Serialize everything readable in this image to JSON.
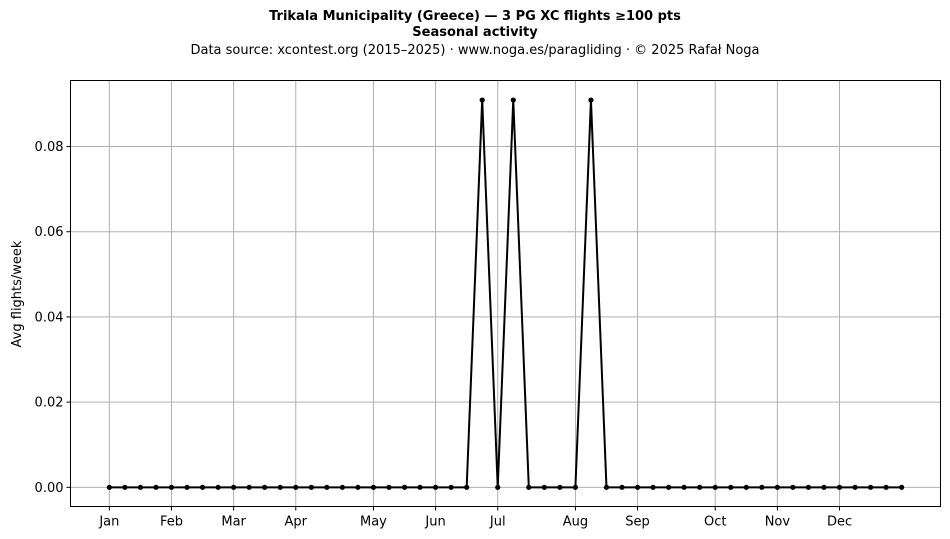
{
  "chart_data": {
    "type": "line",
    "title": "Trikala Municipality (Greece)  —  3 PG XC flights ≥100 pts",
    "subtitle": "Seasonal activity",
    "source_note": "Data source: xcontest.org (2015–2025)  ·  www.noga.es/paragliding  ·  © 2025 Rafał Noga",
    "ylabel": "Avg flights/week",
    "xlabel": "",
    "x_ticks": [
      {
        "label": "Jan",
        "week": 1
      },
      {
        "label": "Feb",
        "week": 5
      },
      {
        "label": "Mar",
        "week": 9
      },
      {
        "label": "Apr",
        "week": 13
      },
      {
        "label": "May",
        "week": 18
      },
      {
        "label": "Jun",
        "week": 22
      },
      {
        "label": "Jul",
        "week": 26
      },
      {
        "label": "Aug",
        "week": 31
      },
      {
        "label": "Sep",
        "week": 35
      },
      {
        "label": "Oct",
        "week": 40
      },
      {
        "label": "Nov",
        "week": 44
      },
      {
        "label": "Dec",
        "week": 48
      }
    ],
    "y_ticks": [
      "0.00",
      "0.02",
      "0.04",
      "0.06",
      "0.08"
    ],
    "xlim": [
      -1.5,
      54.5
    ],
    "ylim": [
      -0.0045,
      0.0955
    ],
    "grid": true,
    "line_color": "#000000",
    "grid_color": "#b0b0b0",
    "x": [
      1,
      2,
      3,
      4,
      5,
      6,
      7,
      8,
      9,
      10,
      11,
      12,
      13,
      14,
      15,
      16,
      17,
      18,
      19,
      20,
      21,
      22,
      23,
      24,
      25,
      26,
      27,
      28,
      29,
      30,
      31,
      32,
      33,
      34,
      35,
      36,
      37,
      38,
      39,
      40,
      41,
      42,
      43,
      44,
      45,
      46,
      47,
      48,
      49,
      50,
      51,
      52
    ],
    "values": [
      0,
      0,
      0,
      0,
      0,
      0,
      0,
      0,
      0,
      0,
      0,
      0,
      0,
      0,
      0,
      0,
      0,
      0,
      0,
      0,
      0,
      0,
      0,
      0,
      0.0909,
      0,
      0.0909,
      0,
      0,
      0,
      0,
      0.0909,
      0,
      0,
      0,
      0,
      0,
      0,
      0,
      0,
      0,
      0,
      0,
      0,
      0,
      0,
      0,
      0,
      0,
      0,
      0,
      0
    ]
  }
}
